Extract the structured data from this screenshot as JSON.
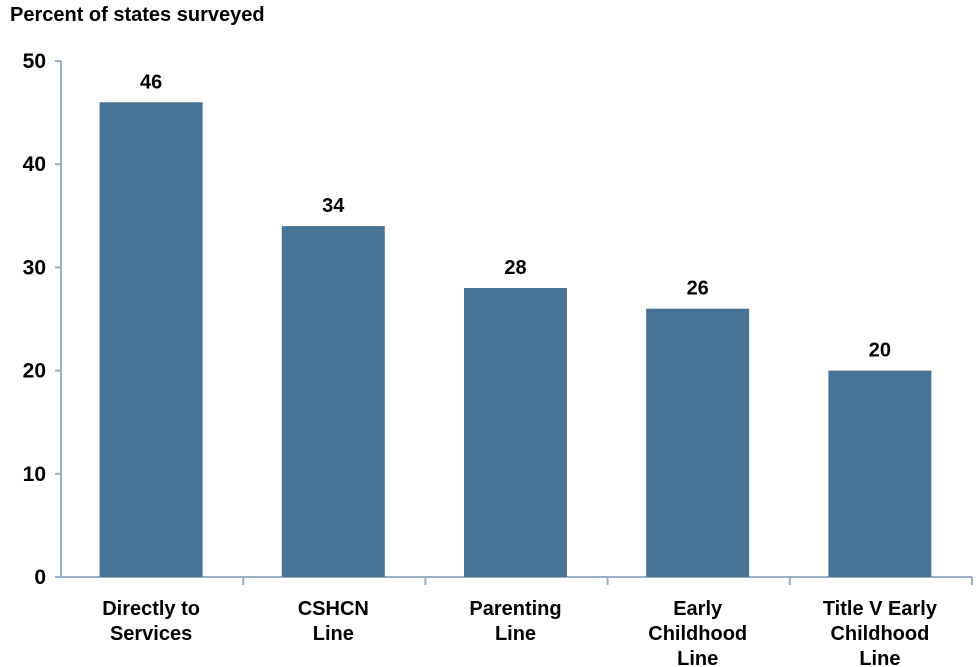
{
  "chart_data": {
    "type": "bar",
    "ylabel": "Percent of states surveyed",
    "ylim": [
      0,
      50
    ],
    "yticks": [
      0,
      10,
      20,
      30,
      40,
      50
    ],
    "categories": [
      [
        "Directly to",
        "Services"
      ],
      [
        "CSHCN",
        "Line"
      ],
      [
        "Parenting",
        "Line"
      ],
      [
        "Early",
        "Childhood",
        "Line"
      ],
      [
        "Title V Early",
        "Childhood",
        "Line"
      ]
    ],
    "values": [
      46,
      34,
      28,
      26,
      20
    ],
    "data_labels": [
      "46",
      "34",
      "28",
      "26",
      "20"
    ],
    "bar_color": "#467396",
    "axis_color": "#9aaec4",
    "grid": false,
    "legend": "none"
  }
}
